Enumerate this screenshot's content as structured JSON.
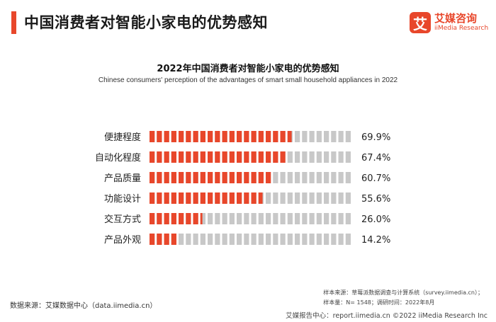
{
  "header": {
    "title": "中国消费者对智能小家电的优势感知",
    "logo_mark": "艾",
    "logo_cn": "艾媒咨询",
    "logo_en": "iiMedia Research"
  },
  "chart_data": {
    "type": "bar",
    "orientation": "horizontal",
    "title": "2022年中国消费者对智能小家电的优势感知",
    "subtitle": "Chinese consumers' perception of the advantages of smart small household appliances in 2022",
    "categories": [
      "便捷程度",
      "自动化程度",
      "产品质量",
      "功能设计",
      "交互方式",
      "产品外观"
    ],
    "values": [
      69.9,
      67.4,
      60.7,
      55.6,
      26.0,
      14.2
    ],
    "value_labels": [
      "69.9%",
      "67.4%",
      "60.7%",
      "55.6%",
      "26.0%",
      "14.2%"
    ],
    "xlim": [
      0,
      100
    ],
    "unit": "%",
    "fill_color": "#e8472b",
    "track_color": "#c8c8c8"
  },
  "footer": {
    "source": "数据来源：艾媒数据中心（data.iimedia.cn）",
    "sample_line1": "样本来源：草莓派数据调查与计算系统（survey.iimedia.cn）；",
    "sample_line2": "样本量：N= 1548；调研时间：2022年8月",
    "copyright": "艾媒报告中心：report.iimedia.cn  ©2022  iiMedia Research  Inc"
  }
}
